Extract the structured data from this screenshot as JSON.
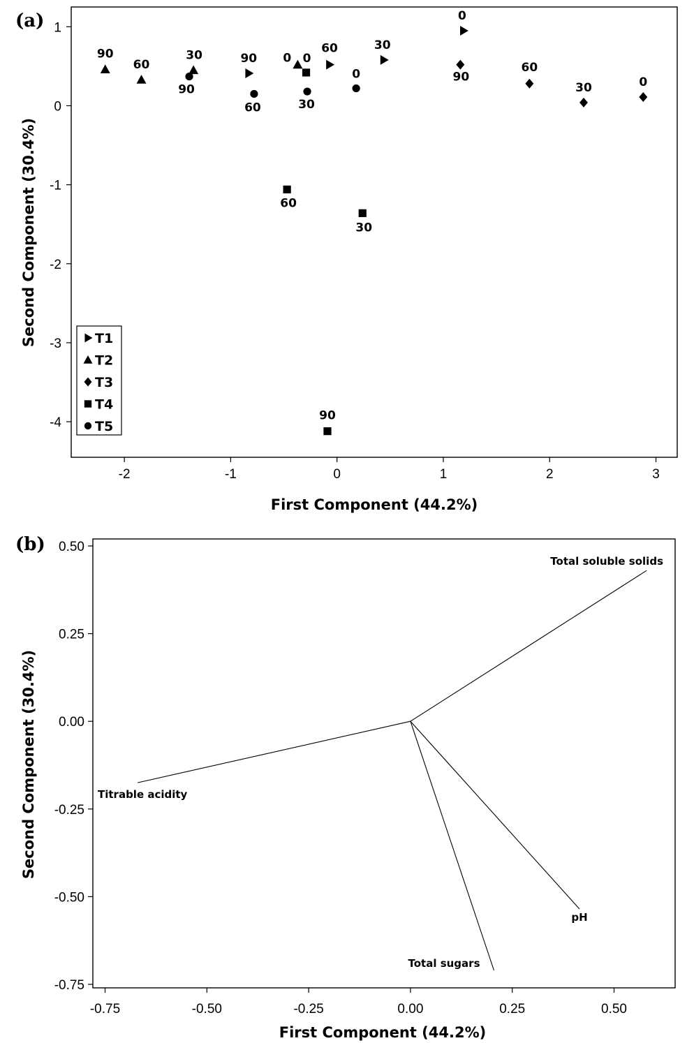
{
  "chart_data": [
    {
      "type": "scatter",
      "panel_label": "(a)",
      "xlabel": "First Component (44.2%)",
      "ylabel": "Second Component (30.4%)",
      "xlim": [
        -2.5,
        3.2
      ],
      "ylim": [
        -4.45,
        1.25
      ],
      "xticks": [
        -2,
        -1,
        0,
        1,
        2,
        3
      ],
      "yticks": [
        -4,
        -3,
        -2,
        -1,
        0,
        1
      ],
      "legend_position": "bottom-left",
      "series": [
        {
          "name": "T1",
          "marker": "triangle-right",
          "points": [
            {
              "x": -0.83,
              "y": 0.41,
              "label": "90"
            },
            {
              "x": -0.07,
              "y": 0.52,
              "label": "60"
            },
            {
              "x": 0.44,
              "y": 0.58,
              "label": "30"
            },
            {
              "x": 1.19,
              "y": 0.95,
              "label": "0"
            }
          ]
        },
        {
          "name": "T2",
          "marker": "triangle-up",
          "points": [
            {
              "x": -2.18,
              "y": 0.46,
              "label": "90"
            },
            {
              "x": -1.84,
              "y": 0.33,
              "label": "60"
            },
            {
              "x": -1.35,
              "y": 0.45,
              "label": "30"
            },
            {
              "x": -0.37,
              "y": 0.52,
              "label": "0"
            }
          ]
        },
        {
          "name": "T3",
          "marker": "diamond",
          "points": [
            {
              "x": 1.16,
              "y": 0.52,
              "label": "90"
            },
            {
              "x": 1.81,
              "y": 0.28,
              "label": "60"
            },
            {
              "x": 2.32,
              "y": 0.04,
              "label": "30"
            },
            {
              "x": 2.88,
              "y": 0.11,
              "label": "0"
            }
          ]
        },
        {
          "name": "T4",
          "marker": "square",
          "points": [
            {
              "x": -0.09,
              "y": -4.12,
              "label": "90"
            },
            {
              "x": -0.47,
              "y": -1.06,
              "label": "60"
            },
            {
              "x": 0.24,
              "y": -1.36,
              "label": "30"
            },
            {
              "x": -0.29,
              "y": 0.42,
              "label": "0"
            }
          ]
        },
        {
          "name": "T5",
          "marker": "circle",
          "points": [
            {
              "x": -1.39,
              "y": 0.37,
              "label": "90"
            },
            {
              "x": -0.78,
              "y": 0.15,
              "label": "60"
            },
            {
              "x": -0.28,
              "y": 0.18,
              "label": "30"
            },
            {
              "x": 0.18,
              "y": 0.22,
              "label": "0"
            }
          ]
        }
      ]
    },
    {
      "type": "line",
      "subtype": "loading-plot",
      "panel_label": "(b)",
      "xlabel": "First Component (44.2%)",
      "ylabel": "Second Component (30.4%)",
      "xlim": [
        -0.78,
        0.65
      ],
      "ylim": [
        -0.76,
        0.52
      ],
      "xticks": [
        -0.75,
        -0.5,
        -0.25,
        0.0,
        0.25,
        0.5
      ],
      "xtick_labels": [
        "-0.75",
        "-0.50",
        "-0.25",
        "0.00",
        "0.25",
        "0.50"
      ],
      "yticks": [
        -0.75,
        -0.5,
        -0.25,
        0.0,
        0.25,
        0.5
      ],
      "ytick_labels": [
        "-0.75",
        "-0.50",
        "-0.25",
        "0.00",
        "0.25",
        "0.50"
      ],
      "vectors": [
        {
          "name": "Total soluble solids",
          "x": 0.58,
          "y": 0.43
        },
        {
          "name": "Titrable acidity",
          "x": -0.67,
          "y": -0.175
        },
        {
          "name": "pH",
          "x": 0.415,
          "y": -0.535
        },
        {
          "name": "Total sugars",
          "x": 0.205,
          "y": -0.71
        }
      ]
    }
  ]
}
